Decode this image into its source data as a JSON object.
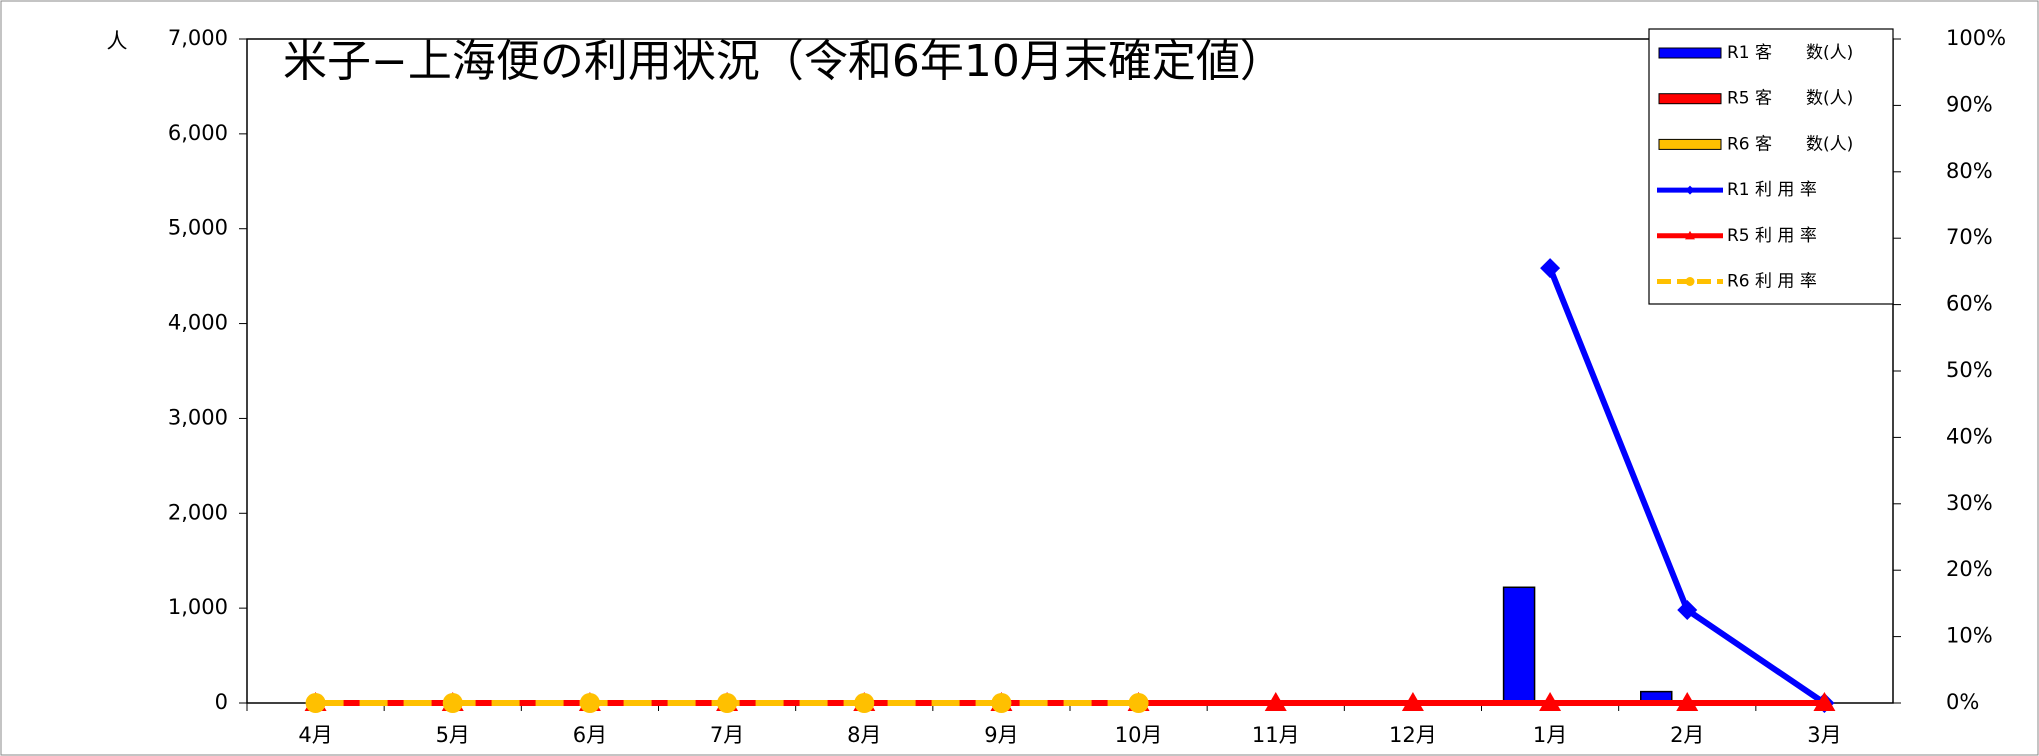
{
  "chart_data": {
    "type": "combo",
    "title": "米子−上海便の利用状況（令和6年10月末確定値）",
    "y_label": "人",
    "categories": [
      "4月",
      "5月",
      "6月",
      "7月",
      "8月",
      "9月",
      "10月",
      "11月",
      "12月",
      "1月",
      "2月",
      "3月"
    ],
    "ylim": [
      0,
      7000
    ],
    "yticks": [
      0,
      {
        "value": 1000,
        "label": "1,000"
      },
      {
        "value": 2000,
        "label": "2,000"
      },
      {
        "value": 3000,
        "label": "3,000"
      },
      {
        "value": 4000,
        "label": "4,000"
      },
      {
        "value": 5000,
        "label": "5,000"
      },
      {
        "value": 6000,
        "label": "6,000"
      },
      {
        "value": 7000,
        "label": "7,000"
      }
    ],
    "y2lim": [
      0,
      100
    ],
    "y2ticks": [
      {
        "value": 0,
        "label": "0%"
      },
      {
        "value": 10,
        "label": "10%"
      },
      {
        "value": 20,
        "label": "20%"
      },
      {
        "value": 30,
        "label": "30%"
      },
      {
        "value": 40,
        "label": "40%"
      },
      {
        "value": 50,
        "label": "50%"
      },
      {
        "value": 60,
        "label": "60%"
      },
      {
        "value": 70,
        "label": "70%"
      },
      {
        "value": 80,
        "label": "80%"
      },
      {
        "value": 90,
        "label": "90%"
      },
      {
        "value": 100,
        "label": "100%"
      }
    ],
    "legend": "top-right",
    "series": [
      {
        "name": "R1 客　　数(人)",
        "type": "bar",
        "color": "#0000ff",
        "values": [
          null,
          null,
          null,
          null,
          null,
          null,
          null,
          null,
          null,
          1220,
          120,
          0
        ]
      },
      {
        "name": "R5 客　　数(人)",
        "type": "bar",
        "color": "#ff0000",
        "values": [
          0,
          0,
          0,
          0,
          0,
          0,
          0,
          0,
          0,
          0,
          0,
          0
        ]
      },
      {
        "name": "R6 客　　数(人)",
        "type": "bar",
        "color": "#ffc000",
        "values": [
          0,
          0,
          0,
          0,
          0,
          0,
          0,
          null,
          null,
          null,
          null,
          null
        ]
      },
      {
        "name": "R1 利 用 率",
        "type": "line",
        "axis": "y2",
        "marker": "diamond",
        "color": "#0000ff",
        "values": [
          null,
          null,
          null,
          null,
          null,
          null,
          null,
          null,
          null,
          65.5,
          14,
          0
        ]
      },
      {
        "name": "R5 利 用 率",
        "type": "line",
        "axis": "y2",
        "marker": "triangle",
        "color": "#ff0000",
        "values": [
          0,
          0,
          0,
          0,
          0,
          0,
          0,
          0,
          0,
          0,
          0,
          0
        ]
      },
      {
        "name": "R6 利 用 率",
        "type": "line",
        "axis": "y2",
        "marker": "circle",
        "dashed": true,
        "color": "#ffc000",
        "values": [
          0,
          0,
          0,
          0,
          0,
          0,
          0,
          null,
          null,
          null,
          null,
          null
        ]
      }
    ]
  }
}
